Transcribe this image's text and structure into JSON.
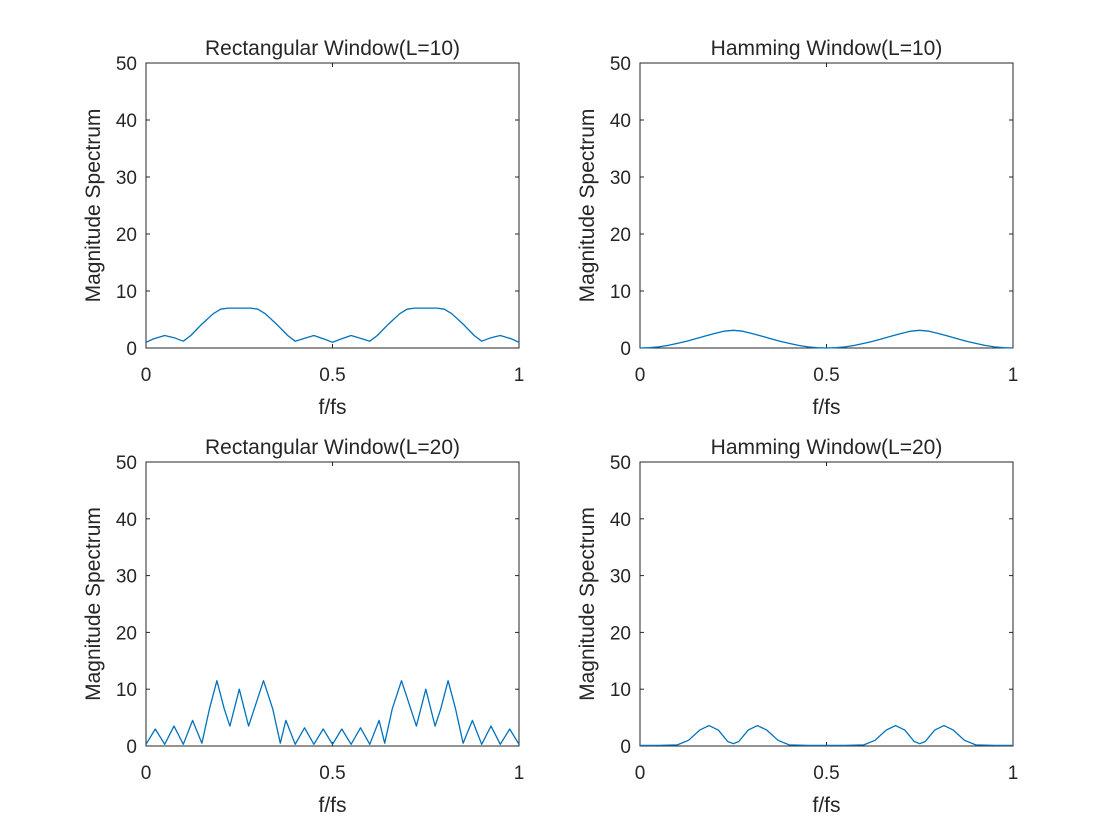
{
  "chart_data": [
    {
      "type": "line",
      "title": "Rectangular Window(L=10)",
      "xlabel": "f/fs",
      "ylabel": "Magnitude Spectrum",
      "xlim": [
        0,
        1
      ],
      "ylim": [
        0,
        50
      ],
      "xticks": [
        "0",
        "0.5",
        "1"
      ],
      "yticks": [
        "0",
        "10",
        "20",
        "30",
        "40",
        "50"
      ],
      "grid": false,
      "color": "#0072BD",
      "x": [
        0,
        0.02,
        0.05,
        0.075,
        0.1,
        0.12,
        0.15,
        0.18,
        0.2,
        0.22,
        0.25,
        0.28,
        0.3,
        0.32,
        0.35,
        0.38,
        0.4,
        0.42,
        0.45,
        0.48,
        0.5,
        0.52,
        0.55,
        0.58,
        0.6,
        0.62,
        0.65,
        0.68,
        0.7,
        0.72,
        0.75,
        0.78,
        0.8,
        0.82,
        0.85,
        0.88,
        0.9,
        0.925,
        0.95,
        0.98,
        1
      ],
      "values": [
        1.0,
        1.6,
        2.2,
        1.8,
        1.2,
        2.2,
        4.2,
        6.0,
        6.8,
        7.0,
        7.0,
        7.0,
        6.8,
        6.0,
        4.2,
        2.2,
        1.2,
        1.6,
        2.2,
        1.5,
        1.0,
        1.5,
        2.2,
        1.6,
        1.2,
        2.2,
        4.2,
        6.0,
        6.8,
        7.0,
        7.0,
        7.0,
        6.8,
        6.0,
        4.2,
        2.2,
        1.2,
        1.8,
        2.2,
        1.6,
        1.0
      ]
    },
    {
      "type": "line",
      "title": "Hamming Window(L=10)",
      "xlabel": "f/fs",
      "ylabel": "Magnitude Spectrum",
      "xlim": [
        0,
        1
      ],
      "ylim": [
        0,
        50
      ],
      "xticks": [
        "0",
        "0.5",
        "1"
      ],
      "yticks": [
        "0",
        "10",
        "20",
        "30",
        "40",
        "50"
      ],
      "grid": false,
      "color": "#0072BD",
      "x": [
        0,
        0.025,
        0.05,
        0.075,
        0.1,
        0.125,
        0.15,
        0.175,
        0.2,
        0.225,
        0.25,
        0.275,
        0.3,
        0.325,
        0.35,
        0.375,
        0.4,
        0.425,
        0.45,
        0.475,
        0.5,
        0.525,
        0.55,
        0.575,
        0.6,
        0.625,
        0.65,
        0.675,
        0.7,
        0.725,
        0.75,
        0.775,
        0.8,
        0.825,
        0.85,
        0.875,
        0.9,
        0.925,
        0.95,
        0.975,
        1
      ],
      "values": [
        0.0,
        0.05,
        0.2,
        0.45,
        0.8,
        1.2,
        1.65,
        2.1,
        2.55,
        2.95,
        3.1,
        2.95,
        2.55,
        2.1,
        1.65,
        1.2,
        0.8,
        0.45,
        0.2,
        0.05,
        0.0,
        0.05,
        0.2,
        0.45,
        0.8,
        1.2,
        1.65,
        2.1,
        2.55,
        2.95,
        3.1,
        2.95,
        2.55,
        2.1,
        1.65,
        1.2,
        0.8,
        0.45,
        0.2,
        0.05,
        0.0
      ]
    },
    {
      "type": "line",
      "title": "Rectangular Window(L=20)",
      "xlabel": "f/fs",
      "ylabel": "Magnitude Spectrum",
      "xlim": [
        0,
        1
      ],
      "ylim": [
        0,
        50
      ],
      "xticks": [
        "0",
        "0.5",
        "1"
      ],
      "yticks": [
        "0",
        "10",
        "20",
        "30",
        "40",
        "50"
      ],
      "grid": false,
      "color": "#0072BD",
      "x": [
        0,
        0.025,
        0.05,
        0.075,
        0.1,
        0.125,
        0.15,
        0.17,
        0.19,
        0.21,
        0.225,
        0.25,
        0.275,
        0.29,
        0.315,
        0.34,
        0.36,
        0.375,
        0.4,
        0.425,
        0.45,
        0.475,
        0.5,
        0.525,
        0.55,
        0.575,
        0.6,
        0.625,
        0.64,
        0.66,
        0.685,
        0.71,
        0.725,
        0.75,
        0.775,
        0.79,
        0.81,
        0.83,
        0.85,
        0.875,
        0.9,
        0.925,
        0.95,
        0.975,
        1
      ],
      "values": [
        0.3,
        3.0,
        0.3,
        3.5,
        0.3,
        4.5,
        0.5,
        6.5,
        11.5,
        6.5,
        3.5,
        10.0,
        3.5,
        6.5,
        11.5,
        6.5,
        0.5,
        4.5,
        0.3,
        3.2,
        0.3,
        3.0,
        0.3,
        3.0,
        0.3,
        3.2,
        0.3,
        4.5,
        0.5,
        6.5,
        11.5,
        6.5,
        3.5,
        10.0,
        3.5,
        6.5,
        11.5,
        6.5,
        0.5,
        4.5,
        0.3,
        3.5,
        0.3,
        3.0,
        0.3
      ]
    },
    {
      "type": "line",
      "title": "Hamming Window(L=20)",
      "xlabel": "f/fs",
      "ylabel": "Magnitude Spectrum",
      "xlim": [
        0,
        1
      ],
      "ylim": [
        0,
        50
      ],
      "xticks": [
        "0",
        "0.5",
        "1"
      ],
      "yticks": [
        "0",
        "10",
        "20",
        "30",
        "40",
        "50"
      ],
      "grid": false,
      "color": "#0072BD",
      "x": [
        0,
        0.05,
        0.1,
        0.13,
        0.16,
        0.185,
        0.21,
        0.235,
        0.25,
        0.265,
        0.29,
        0.315,
        0.34,
        0.37,
        0.4,
        0.45,
        0.5,
        0.55,
        0.6,
        0.63,
        0.66,
        0.685,
        0.71,
        0.735,
        0.75,
        0.765,
        0.79,
        0.815,
        0.84,
        0.87,
        0.9,
        0.95,
        1
      ],
      "values": [
        0.1,
        0.1,
        0.2,
        1.0,
        2.8,
        3.6,
        2.8,
        0.8,
        0.4,
        0.8,
        2.8,
        3.6,
        2.8,
        1.0,
        0.2,
        0.1,
        0.1,
        0.1,
        0.2,
        1.0,
        2.8,
        3.6,
        2.8,
        0.8,
        0.4,
        0.8,
        2.8,
        3.6,
        2.8,
        1.0,
        0.2,
        0.1,
        0.1
      ]
    }
  ]
}
